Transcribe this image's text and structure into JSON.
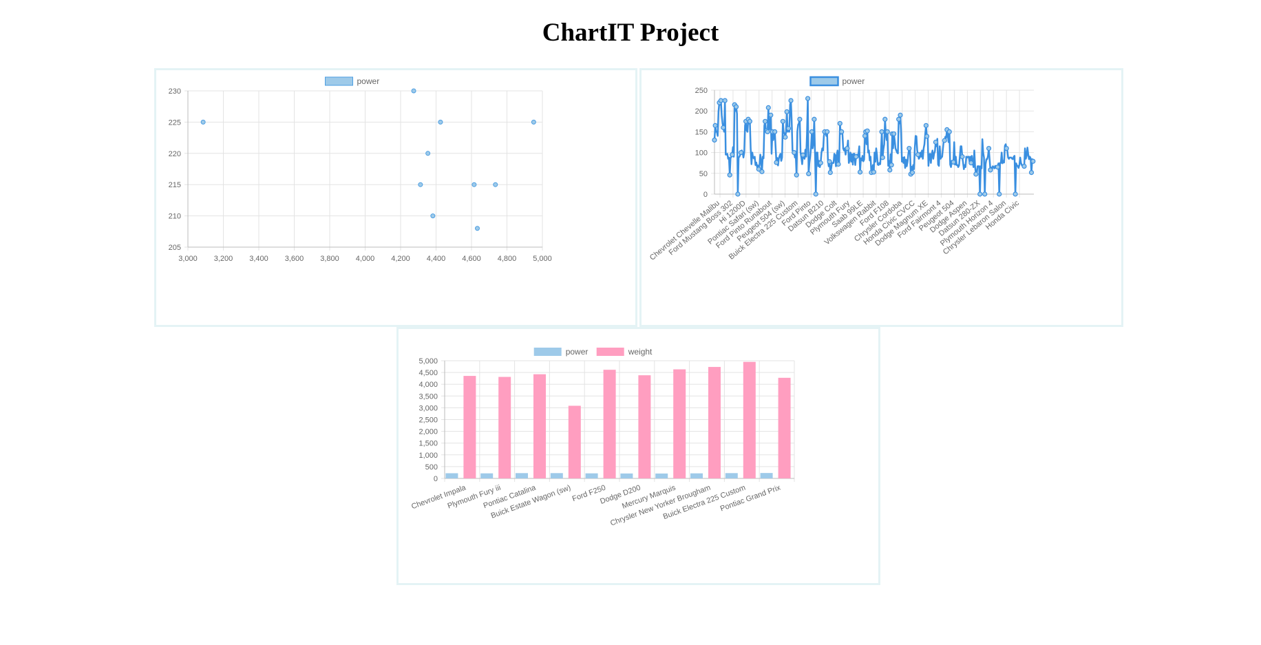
{
  "page": {
    "title": "ChartIT Project"
  },
  "chart_data": [
    {
      "type": "scatter",
      "legend": [
        "power"
      ],
      "legend_position": "top",
      "xlim": [
        3000,
        5000
      ],
      "ylim": [
        205,
        230
      ],
      "x_ticks": [
        "3,000",
        "3,200",
        "3,400",
        "3,600",
        "3,800",
        "4,000",
        "4,200",
        "4,400",
        "4,600",
        "4,800",
        "5,000"
      ],
      "y_ticks": [
        "205",
        "210",
        "215",
        "220",
        "225",
        "230"
      ],
      "grid": true,
      "colors": {
        "fill": "#9ecae9",
        "stroke": "#4c9ee2"
      },
      "series": [
        {
          "name": "power",
          "points": [
            {
              "x": 3086,
              "y": 225
            },
            {
              "x": 4274,
              "y": 230
            },
            {
              "x": 4425,
              "y": 225
            },
            {
              "x": 4951,
              "y": 225
            },
            {
              "x": 4354,
              "y": 220
            },
            {
              "x": 4312,
              "y": 215
            },
            {
              "x": 4615,
              "y": 215
            },
            {
              "x": 4735,
              "y": 215
            },
            {
              "x": 4382,
              "y": 210
            },
            {
              "x": 4633,
              "y": 208
            }
          ]
        }
      ]
    },
    {
      "type": "line",
      "legend": [
        "power"
      ],
      "legend_position": "top",
      "ylim": [
        0,
        250
      ],
      "y_ticks": [
        "0",
        "50",
        "100",
        "150",
        "200",
        "250"
      ],
      "x_labels": [
        "Chevrolet Chevelle Malibu",
        "Ford Mustang Boss 302",
        "Hi 1200D",
        "Pontiac Safari (sw)",
        "Ford Pinto Runabout",
        "Peugeot 504 (sw)",
        "Buick Electra 225 Custom",
        "Ford Pinto",
        "Datsun B210",
        "Dodge Colt",
        "Plymouth Fury",
        "Saab 99LE",
        "Volkswagen Rabbit",
        "Ford F108",
        "Chrysler Cordoba",
        "Honda Civic CVCC",
        "Dodge Magnum XE",
        "Ford Fairmont 4",
        "Peugeot 504",
        "Dodge Aspen",
        "Datsun 280-ZX",
        "Plymouth Horizon 4",
        "Chrysler Lebaron Salon",
        "Honda Civic"
      ],
      "grid": true,
      "colors": {
        "line": "#3a8fe0",
        "point_fill": "#9ecae9"
      },
      "series": [
        {
          "name": "power",
          "values": [
            130,
            165,
            150,
            150,
            140,
            198,
            220,
            215,
            225,
            190,
            170,
            160,
            150,
            225,
            95,
            95,
            97,
            85,
            88,
            46,
            87,
            90,
            95,
            113,
            90,
            215,
            200,
            210,
            193,
            0,
            88,
            90,
            95,
            100,
            105,
            100,
            88,
            100,
            165,
            175,
            153,
            150,
            180,
            170,
            175,
            110,
            72,
            100,
            88,
            86,
            90,
            70,
            76,
            65,
            69,
            60,
            70,
            95,
            80,
            54,
            90,
            86,
            165,
            175,
            150,
            153,
            150,
            208,
            155,
            160,
            190,
            97,
            150,
            130,
            140,
            150,
            112,
            76,
            87,
            69,
            86,
            92,
            97,
            80,
            88,
            175,
            150,
            145,
            137,
            150,
            198,
            150,
            158,
            150,
            215,
            225,
            175,
            105,
            100,
            100,
            88,
            95,
            46,
            150,
            167,
            170,
            180,
            100,
            88,
            72,
            94,
            90,
            85,
            107,
            90,
            145,
            230,
            49,
            75,
            91,
            112,
            150,
            110,
            122,
            180,
            95,
            0,
            100,
            100,
            67,
            80,
            65,
            75,
            100,
            110,
            105,
            140,
            150,
            150,
            140,
            150,
            83,
            67,
            78,
            52,
            61,
            75,
            75,
            75,
            97,
            93,
            67,
            95,
            105,
            72,
            72,
            170,
            145,
            150,
            148,
            110,
            105,
            110,
            95,
            110,
            110,
            129,
            75,
            83,
            100,
            78,
            96,
            71,
            97,
            97,
            70,
            90,
            95,
            88,
            98,
            115,
            53,
            86,
            81,
            92,
            79,
            83,
            140,
            150,
            120,
            152,
            100,
            105,
            81,
            90,
            52,
            60,
            70,
            53,
            100,
            78,
            110,
            95,
            71,
            70,
            75,
            72,
            102,
            150,
            88,
            108,
            120,
            180,
            145,
            130,
            150,
            68,
            80,
            58,
            96,
            70,
            145,
            110,
            145,
            130,
            110,
            105,
            100,
            98,
            180,
            170,
            190,
            149,
            78,
            88,
            75,
            89,
            63,
            83,
            67,
            78,
            97,
            110,
            110,
            48,
            66,
            52,
            70,
            60,
            110,
            140,
            139,
            105,
            95,
            85,
            88,
            100,
            90,
            105,
            85,
            110,
            120,
            145,
            165,
            139,
            140,
            68,
            95,
            97,
            75,
            95,
            105,
            85,
            97,
            103,
            125,
            115,
            133,
            71,
            68,
            115,
            85,
            88,
            90,
            110,
            130,
            129,
            138,
            135,
            155,
            142,
            125,
            150,
            71,
            65,
            80,
            80,
            77,
            125,
            71,
            90,
            70,
            70,
            65,
            69,
            90,
            115,
            115,
            90,
            76,
            60,
            70,
            65,
            90,
            88,
            90,
            90,
            78,
            90,
            75,
            92,
            75,
            65,
            105,
            65,
            48,
            48,
            67,
            67,
            67,
            0,
            67,
            62,
            132,
            100,
            88,
            0,
            72,
            84,
            84,
            92,
            110,
            84,
            58,
            64,
            60,
            67,
            65,
            62,
            68,
            63,
            65,
            65,
            74,
            0,
            75,
            75,
            100,
            74,
            80,
            76,
            116,
            120,
            110,
            105,
            88,
            85,
            88,
            88,
            88,
            85,
            84,
            90,
            92,
            0,
            74,
            68,
            68,
            63,
            70,
            88,
            75,
            70,
            67,
            67,
            67,
            110,
            85,
            92,
            112,
            96,
            84,
            90,
            86,
            52,
            84,
            79,
            82
          ]
        }
      ]
    },
    {
      "type": "bar",
      "legend": [
        "power",
        "weight"
      ],
      "legend_position": "top",
      "ylim": [
        0,
        5000
      ],
      "y_ticks": [
        "0",
        "500",
        "1,000",
        "1,500",
        "2,000",
        "2,500",
        "3,000",
        "3,500",
        "4,000",
        "4,500",
        "5,000"
      ],
      "categories": [
        "Chevrolet Impala",
        "Plymouth Fury iii",
        "Pontiac Catalina",
        "Buick Estate Wagon (sw)",
        "Ford F250",
        "Dodge D200",
        "Mercury Marquis",
        "Chrysler New Yorker Brougham",
        "Buick Electra 225 Custom",
        "Pontiac Grand Prix"
      ],
      "grid": true,
      "colors": {
        "power": "#9ecae9",
        "weight": "#ff9ec0"
      },
      "series": [
        {
          "name": "power",
          "values": [
            220,
            215,
            225,
            225,
            215,
            210,
            208,
            215,
            225,
            230
          ]
        },
        {
          "name": "weight",
          "values": [
            4354,
            4312,
            4425,
            3086,
            4615,
            4382,
            4633,
            4735,
            4951,
            4274
          ]
        }
      ]
    }
  ]
}
